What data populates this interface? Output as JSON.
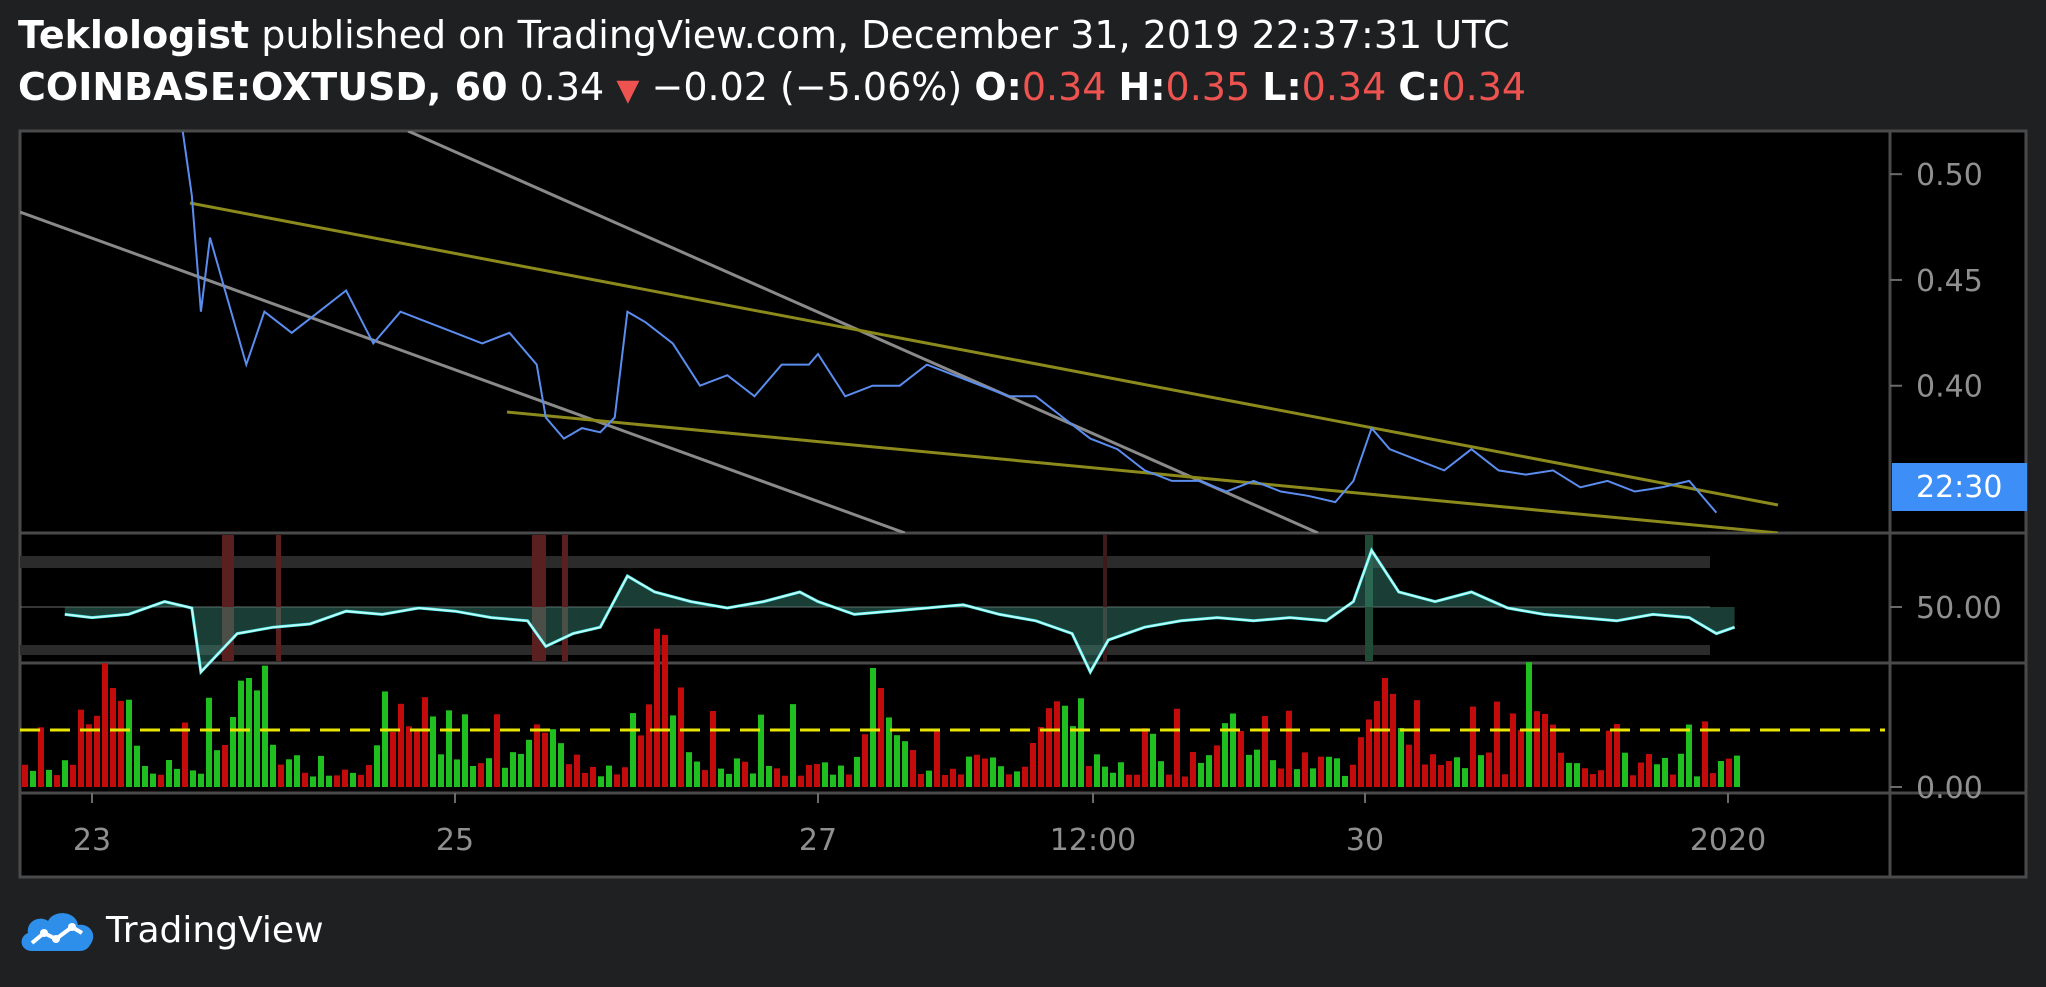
{
  "header": {
    "author": "Teklologist",
    "published_text": "published on TradingView.com, December 31, 2019 22:37:31 UTC",
    "symbol": "COINBASE:OXTUSD, 60",
    "last": "0.34",
    "arrow": "▼",
    "change": "−0.02 (−5.06%)",
    "o_label": "O:",
    "o_value": "0.34",
    "h_label": "H:",
    "h_value": "0.35",
    "l_label": "L:",
    "l_value": "0.34",
    "c_label": "C:",
    "c_value": "0.34"
  },
  "footer": {
    "brand": "TradingView"
  },
  "colors": {
    "background": "#000000",
    "frame": "#1f2022",
    "price_line": "#5b8def",
    "trendline_olive": "#8c8a1c",
    "trendline_gray": "#8a8a8a",
    "rsi_line": "#ffffff",
    "rsi_cyan": "#26e8e3",
    "volume_up": "#1fbf1f",
    "volume_down": "#c40b0b",
    "volume_ma": "#e8e600",
    "price_badge": "#3e8ef7",
    "accent_red": "#ef5350"
  },
  "chart_data": {
    "type": "line",
    "symbol": "COINBASE:OXTUSD",
    "interval": "60",
    "x_ticks": [
      "23",
      "25",
      "27",
      "12:00",
      "30",
      "2020"
    ],
    "price_axis_ticks": [
      "0.50",
      "0.45",
      "0.40"
    ],
    "price_ylim": [
      0.32,
      0.51
    ],
    "last_price_badge": "22:30",
    "price_series": [
      [
        23.5,
        0.52
      ],
      [
        23.55,
        0.49
      ],
      [
        23.6,
        0.435
      ],
      [
        23.65,
        0.47
      ],
      [
        23.75,
        0.44
      ],
      [
        23.85,
        0.41
      ],
      [
        23.95,
        0.435
      ],
      [
        24.1,
        0.425
      ],
      [
        24.25,
        0.435
      ],
      [
        24.4,
        0.445
      ],
      [
        24.55,
        0.42
      ],
      [
        24.7,
        0.435
      ],
      [
        24.85,
        0.43
      ],
      [
        25.0,
        0.425
      ],
      [
        25.15,
        0.42
      ],
      [
        25.3,
        0.425
      ],
      [
        25.45,
        0.41
      ],
      [
        25.5,
        0.385
      ],
      [
        25.6,
        0.375
      ],
      [
        25.7,
        0.38
      ],
      [
        25.8,
        0.378
      ],
      [
        25.88,
        0.385
      ],
      [
        25.95,
        0.435
      ],
      [
        26.05,
        0.43
      ],
      [
        26.2,
        0.42
      ],
      [
        26.35,
        0.4
      ],
      [
        26.5,
        0.405
      ],
      [
        26.65,
        0.395
      ],
      [
        26.8,
        0.41
      ],
      [
        26.95,
        0.41
      ],
      [
        27.0,
        0.415
      ],
      [
        27.15,
        0.395
      ],
      [
        27.3,
        0.4
      ],
      [
        27.45,
        0.4
      ],
      [
        27.6,
        0.41
      ],
      [
        27.75,
        0.405
      ],
      [
        27.9,
        0.4
      ],
      [
        28.05,
        0.395
      ],
      [
        28.2,
        0.395
      ],
      [
        28.35,
        0.385
      ],
      [
        28.5,
        0.375
      ],
      [
        28.65,
        0.37
      ],
      [
        28.8,
        0.36
      ],
      [
        28.95,
        0.355
      ],
      [
        29.1,
        0.355
      ],
      [
        29.25,
        0.35
      ],
      [
        29.4,
        0.355
      ],
      [
        29.55,
        0.35
      ],
      [
        29.7,
        0.348
      ],
      [
        29.85,
        0.345
      ],
      [
        29.95,
        0.355
      ],
      [
        30.05,
        0.38
      ],
      [
        30.15,
        0.37
      ],
      [
        30.3,
        0.365
      ],
      [
        30.45,
        0.36
      ],
      [
        30.6,
        0.37
      ],
      [
        30.75,
        0.36
      ],
      [
        30.9,
        0.358
      ],
      [
        31.05,
        0.36
      ],
      [
        31.2,
        0.352
      ],
      [
        31.35,
        0.355
      ],
      [
        31.5,
        0.35
      ],
      [
        31.65,
        0.352
      ],
      [
        31.8,
        0.355
      ],
      [
        31.9,
        0.345
      ],
      [
        31.95,
        0.34
      ]
    ],
    "rsi_axis_ticks": [
      "50.00"
    ],
    "rsi_series": [
      [
        22.85,
        48
      ],
      [
        23.0,
        47
      ],
      [
        23.2,
        48
      ],
      [
        23.4,
        52
      ],
      [
        23.55,
        50
      ],
      [
        23.6,
        30
      ],
      [
        23.8,
        42
      ],
      [
        24.0,
        44
      ],
      [
        24.2,
        45
      ],
      [
        24.4,
        49
      ],
      [
        24.6,
        48
      ],
      [
        24.8,
        50
      ],
      [
        25.0,
        49
      ],
      [
        25.2,
        47
      ],
      [
        25.4,
        46
      ],
      [
        25.5,
        38
      ],
      [
        25.65,
        42
      ],
      [
        25.8,
        44
      ],
      [
        25.95,
        60
      ],
      [
        26.1,
        55
      ],
      [
        26.3,
        52
      ],
      [
        26.5,
        50
      ],
      [
        26.7,
        52
      ],
      [
        26.9,
        55
      ],
      [
        27.0,
        52
      ],
      [
        27.2,
        48
      ],
      [
        27.4,
        49
      ],
      [
        27.6,
        50
      ],
      [
        27.8,
        51
      ],
      [
        28.0,
        48
      ],
      [
        28.2,
        46
      ],
      [
        28.4,
        42
      ],
      [
        28.5,
        30
      ],
      [
        28.6,
        40
      ],
      [
        28.8,
        44
      ],
      [
        29.0,
        46
      ],
      [
        29.2,
        47
      ],
      [
        29.4,
        46
      ],
      [
        29.6,
        47
      ],
      [
        29.8,
        46
      ],
      [
        29.95,
        52
      ],
      [
        30.05,
        68
      ],
      [
        30.2,
        55
      ],
      [
        30.4,
        52
      ],
      [
        30.6,
        55
      ],
      [
        30.8,
        50
      ],
      [
        31.0,
        48
      ],
      [
        31.2,
        47
      ],
      [
        31.4,
        46
      ],
      [
        31.6,
        48
      ],
      [
        31.8,
        47
      ],
      [
        31.95,
        42
      ],
      [
        32.05,
        44
      ]
    ],
    "volume_axis_ticks": [
      "0.00"
    ],
    "volume_bars_up_color": "#1fbf1f",
    "volume_bars_down_color": "#c40b0b"
  }
}
